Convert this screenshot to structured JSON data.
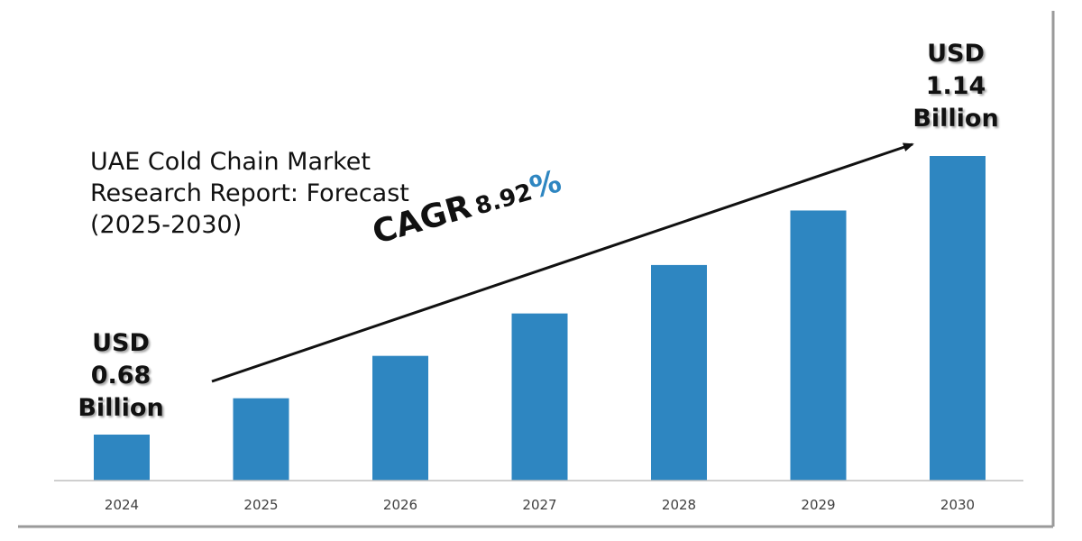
{
  "colors": {
    "bar": "#2e86c1",
    "accent": "#2e86c1",
    "text": "#111111",
    "axis": "#bfbfbf",
    "frame": "#9a9a9a"
  },
  "title": "UAE Cold Chain Market\nResearch Report: Forecast\n(2025-2030)",
  "cagr": {
    "word": "CAGR",
    "number": "8.92",
    "percent": "%"
  },
  "callout_start": {
    "line1": "USD",
    "line2": "0.68",
    "line3": "Billion"
  },
  "callout_end": {
    "line1": "USD",
    "line2": "1.14",
    "line3": "Billion"
  },
  "chart_data": {
    "type": "bar",
    "title": "UAE Cold Chain Market Research Report: Forecast (2025-2030)",
    "categories": [
      "2024",
      "2025",
      "2026",
      "2027",
      "2028",
      "2029",
      "2030"
    ],
    "values": [
      0.68,
      0.74,
      0.81,
      0.88,
      0.96,
      1.05,
      1.14
    ],
    "ylabel": "",
    "xlabel": "",
    "grid": false,
    "legend": "none",
    "annotations": [
      "USD 0.68 Billion",
      "USD 1.14 Billion",
      "CAGR 8.92%"
    ]
  }
}
